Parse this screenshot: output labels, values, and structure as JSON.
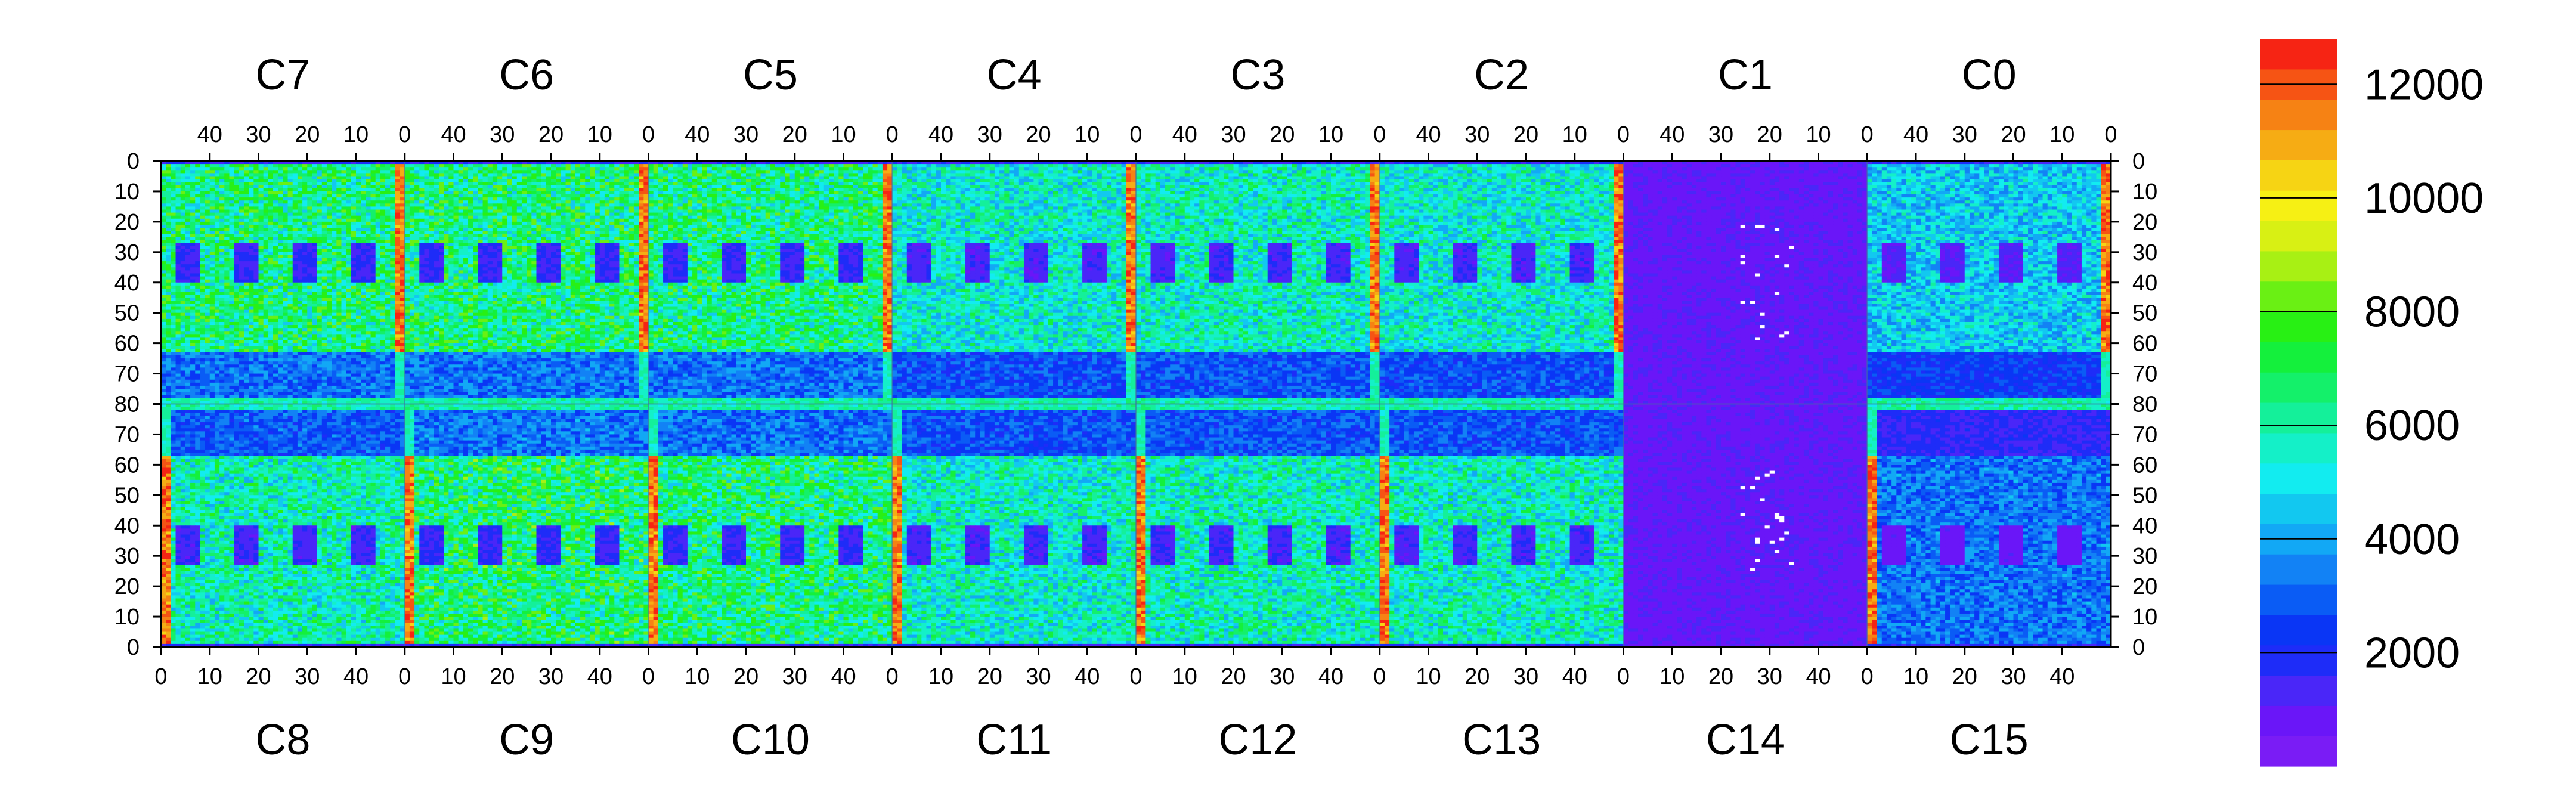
{
  "chart_data": {
    "type": "heatmap",
    "title": "",
    "xlabel": "",
    "ylabel": "",
    "chips_top": [
      "C7",
      "C6",
      "C5",
      "C4",
      "C3",
      "C2",
      "C1",
      "C0"
    ],
    "chips_bottom": [
      "C8",
      "C9",
      "C10",
      "C11",
      "C12",
      "C13",
      "C14",
      "C15"
    ],
    "chip_columns": 50,
    "chip_rows": 80,
    "top_x_ticks": [
      "40",
      "30",
      "20",
      "10",
      "0"
    ],
    "bottom_x_ticks": [
      "0",
      "10",
      "20",
      "30",
      "40"
    ],
    "top_y_ticks": [
      "0",
      "10",
      "20",
      "30",
      "40",
      "50",
      "60",
      "70",
      "80"
    ],
    "bottom_y_ticks": [
      "80",
      "70",
      "60",
      "50",
      "40",
      "30",
      "20",
      "10",
      "0"
    ],
    "zlim": [
      0,
      12800
    ],
    "colorbar_ticks": [
      "2000",
      "4000",
      "6000",
      "8000",
      "10000",
      "12000"
    ],
    "colorbar_tick_values": [
      2000,
      4000,
      6000,
      8000,
      10000,
      12000
    ],
    "colorbar_colors": [
      "#7a1cf5",
      "#6a16f8",
      "#4a26f8",
      "#1e2cf8",
      "#0a36f5",
      "#0a5cf5",
      "#1282f5",
      "#12a8f5",
      "#12c8f0",
      "#12ecf0",
      "#14f0c8",
      "#14f09a",
      "#14f06a",
      "#14f03c",
      "#28f014",
      "#6af014",
      "#a8f014",
      "#d8f014",
      "#f6f014",
      "#f6d414",
      "#f6ac14",
      "#f68214",
      "#f65414",
      "#f62414"
    ],
    "chips": [
      {
        "name": "C7",
        "mean": 6400
      },
      {
        "name": "C6",
        "mean": 6500
      },
      {
        "name": "C5",
        "mean": 6400
      },
      {
        "name": "C4",
        "mean": 5400
      },
      {
        "name": "C3",
        "mean": 5600
      },
      {
        "name": "C2",
        "mean": 5400
      },
      {
        "name": "C1",
        "mean": 900
      },
      {
        "name": "C0",
        "mean": 4600
      },
      {
        "name": "C8",
        "mean": 5800
      },
      {
        "name": "C9",
        "mean": 6600
      },
      {
        "name": "C10",
        "mean": 6400
      },
      {
        "name": "C11",
        "mean": 5500
      },
      {
        "name": "C12",
        "mean": 5700
      },
      {
        "name": "C13",
        "mean": 5600
      },
      {
        "name": "C14",
        "mean": 900
      },
      {
        "name": "C15",
        "mean": 3300
      }
    ]
  }
}
